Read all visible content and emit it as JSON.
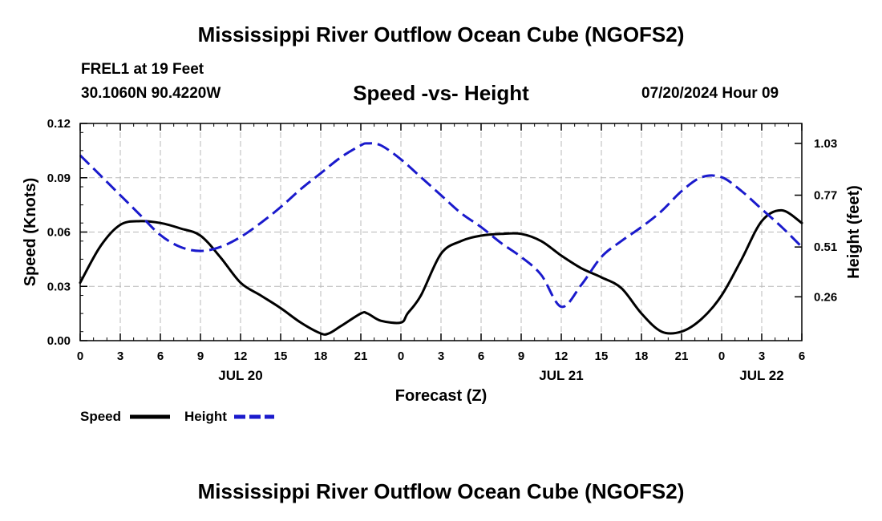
{
  "header": {
    "main_title": "Mississippi River Outflow Ocean Cube (NGOFS2)",
    "station_line": "FREL1 at 19 Feet",
    "coords_line": "30.1060N  90.4220W",
    "chart_title": "Speed -vs- Height",
    "datetime": "07/20/2024 Hour 09",
    "bottom_title": "Mississippi River Outflow Ocean Cube (NGOFS2)"
  },
  "chart_data": {
    "type": "line",
    "title": "Speed -vs- Height",
    "xlabel": "Forecast (Z)",
    "ylabel": "Speed (Knots)",
    "y2label": "Height (feet)",
    "xlim": [
      0,
      54
    ],
    "ylim": [
      0,
      0.12
    ],
    "y2lim": [
      0.04,
      1.13
    ],
    "x_ticks": [
      0,
      3,
      6,
      9,
      12,
      15,
      18,
      21,
      24,
      27,
      30,
      33,
      36,
      39,
      42,
      45,
      48,
      51,
      54
    ],
    "x_tick_labels": [
      "0",
      "3",
      "6",
      "9",
      "12",
      "15",
      "18",
      "21",
      "0",
      "3",
      "6",
      "9",
      "12",
      "15",
      "18",
      "21",
      "0",
      "3",
      "6"
    ],
    "date_labels": [
      {
        "x": 12,
        "label": "JUL 20"
      },
      {
        "x": 36,
        "label": "JUL 21"
      },
      {
        "x": 51,
        "label": "JUL 22"
      }
    ],
    "y_ticks": [
      0.0,
      0.03,
      0.06,
      0.09,
      0.12
    ],
    "y_tick_labels": [
      "0.00",
      "0.03",
      "0.06",
      "0.09",
      "0.12"
    ],
    "y2_ticks": [
      0.26,
      0.51,
      0.77,
      1.03
    ],
    "y2_tick_labels": [
      "0.26",
      "0.51",
      "0.77",
      "1.03"
    ],
    "grid": true,
    "legend_position": "bottom-left",
    "series": [
      {
        "name": "Speed",
        "axis": "left",
        "color": "#000000",
        "style": "solid",
        "x": [
          0,
          1.5,
          3,
          4.5,
          6,
          7.5,
          9,
          10.5,
          12,
          13.5,
          15,
          16.5,
          18,
          18.6,
          19.5,
          21,
          21.5,
          22.5,
          24,
          24.5,
          25.5,
          27,
          28.5,
          30,
          31.5,
          33,
          34.5,
          36,
          37.5,
          39,
          40.5,
          42,
          43.5,
          45,
          46.5,
          48,
          49.5,
          51,
          52.5,
          54
        ],
        "values": [
          0.032,
          0.052,
          0.064,
          0.066,
          0.065,
          0.062,
          0.058,
          0.046,
          0.032,
          0.025,
          0.018,
          0.01,
          0.004,
          0.004,
          0.008,
          0.015,
          0.015,
          0.011,
          0.01,
          0.015,
          0.025,
          0.048,
          0.055,
          0.058,
          0.059,
          0.059,
          0.055,
          0.047,
          0.04,
          0.035,
          0.029,
          0.015,
          0.005,
          0.005,
          0.012,
          0.025,
          0.045,
          0.066,
          0.072,
          0.065
        ]
      },
      {
        "name": "Height",
        "axis": "right",
        "color": "#1a1acc",
        "style": "dashed",
        "x": [
          0,
          1.5,
          3,
          4.5,
          6,
          7.5,
          9,
          10.5,
          12,
          13.5,
          15,
          16.5,
          18,
          19.5,
          21,
          21.5,
          22.5,
          24,
          25.5,
          27,
          28.5,
          30,
          31.5,
          33,
          34.5,
          36,
          37.5,
          39,
          40.5,
          42,
          43.5,
          45,
          46.5,
          48,
          49.5,
          51,
          52.5,
          54
        ],
        "values": [
          0.97,
          0.87,
          0.77,
          0.67,
          0.57,
          0.51,
          0.49,
          0.51,
          0.56,
          0.63,
          0.71,
          0.8,
          0.88,
          0.96,
          1.02,
          1.03,
          1.02,
          0.95,
          0.86,
          0.77,
          0.68,
          0.61,
          0.53,
          0.46,
          0.37,
          0.21,
          0.32,
          0.46,
          0.54,
          0.61,
          0.69,
          0.79,
          0.86,
          0.86,
          0.79,
          0.7,
          0.61,
          0.51
        ]
      }
    ]
  }
}
